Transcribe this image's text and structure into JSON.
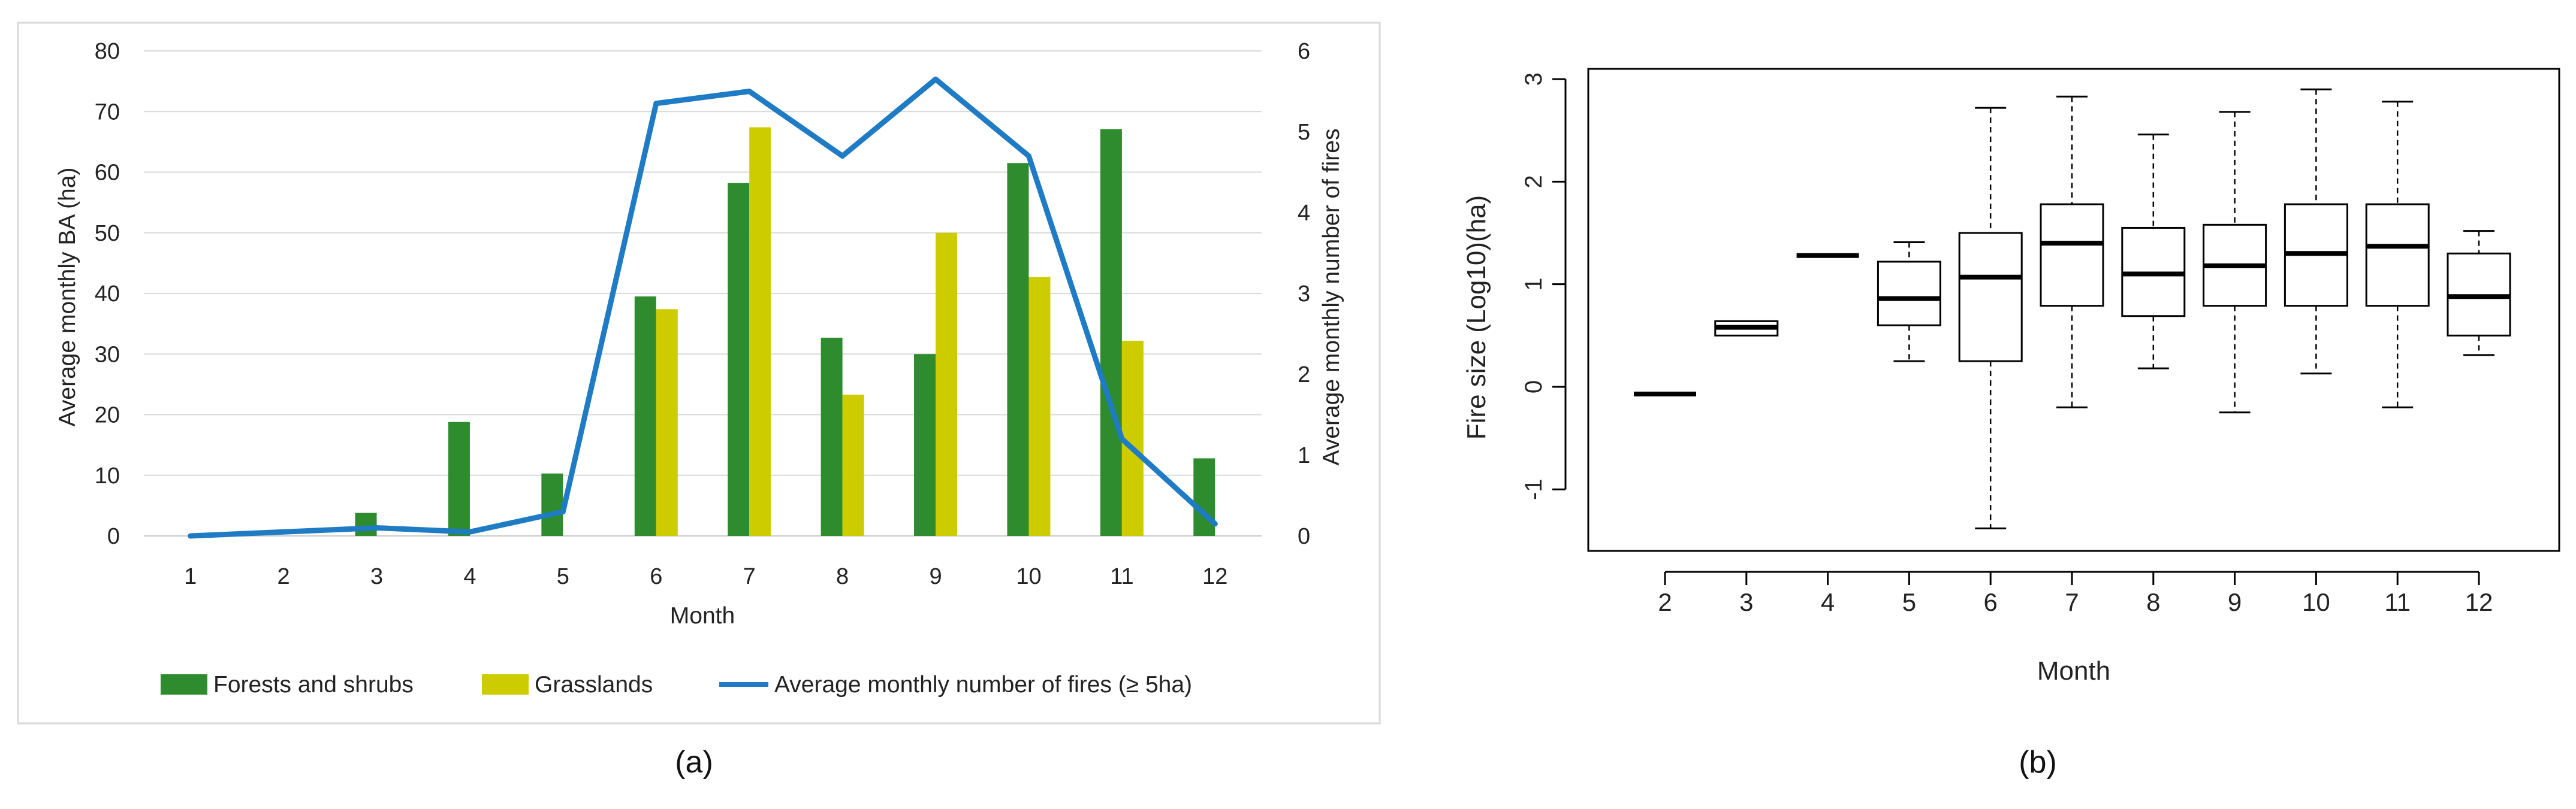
{
  "chart_data": [
    {
      "type": "bar",
      "panel_label": "(a)",
      "xlabel": "Month",
      "ylabel": "Average monthly BA (ha)",
      "y2label": "Average monthly number of fires",
      "ylim": [
        0,
        80
      ],
      "y2lim": [
        0,
        6
      ],
      "yticks": [
        "0",
        "10",
        "20",
        "30",
        "40",
        "50",
        "60",
        "70",
        "80"
      ],
      "y2ticks": [
        "0",
        "1",
        "2",
        "3",
        "4",
        "5",
        "6"
      ],
      "categories": [
        "1",
        "2",
        "3",
        "4",
        "5",
        "6",
        "7",
        "8",
        "9",
        "10",
        "11",
        "12"
      ],
      "grid": true,
      "legend_position": "bottom",
      "series": [
        {
          "name": "Forests and shrubs",
          "kind": "bar",
          "axis": "left",
          "color": "#2e8b2e",
          "values": [
            0,
            0,
            3.8,
            18.8,
            10.3,
            39.5,
            58.2,
            32.7,
            30,
            61.5,
            67.1,
            12.8
          ]
        },
        {
          "name": "Grasslands",
          "kind": "bar",
          "axis": "left",
          "color": "#cccc00",
          "values": [
            0,
            0,
            0,
            0,
            0,
            37.4,
            67.4,
            23.3,
            50,
            42.7,
            32.2,
            0
          ]
        },
        {
          "name": "Average monthly number of fires (≥ 5ha)",
          "kind": "line",
          "axis": "right",
          "color": "#1f7bc4",
          "values": [
            0,
            0.05,
            0.1,
            0.05,
            0.3,
            5.35,
            5.5,
            4.7,
            5.65,
            4.7,
            1.2,
            0.15
          ]
        }
      ]
    },
    {
      "type": "box",
      "panel_label": "(b)",
      "xlabel": "Month",
      "ylabel": "Fire size (Log10)(ha)",
      "ylim": [
        -1.6,
        3.1
      ],
      "yticks": [
        "-1",
        "0",
        "1",
        "2",
        "3"
      ],
      "categories": [
        "2",
        "3",
        "4",
        "5",
        "6",
        "7",
        "8",
        "9",
        "10",
        "11",
        "12"
      ],
      "boxes": [
        {
          "month": "2",
          "min": -0.07,
          "q1": -0.07,
          "median": -0.07,
          "q3": -0.07,
          "max": -0.07
        },
        {
          "month": "3",
          "min": 0.5,
          "q1": 0.5,
          "median": 0.58,
          "q3": 0.64,
          "max": 0.64
        },
        {
          "month": "4",
          "min": 1.28,
          "q1": 1.28,
          "median": 1.28,
          "q3": 1.28,
          "max": 1.28
        },
        {
          "month": "5",
          "min": 0.25,
          "q1": 0.6,
          "median": 0.86,
          "q3": 1.22,
          "max": 1.41
        },
        {
          "month": "6",
          "min": -1.38,
          "q1": 0.25,
          "median": 1.07,
          "q3": 1.5,
          "max": 2.72
        },
        {
          "month": "7",
          "min": -0.2,
          "q1": 0.79,
          "median": 1.4,
          "q3": 1.78,
          "max": 2.83
        },
        {
          "month": "8",
          "min": 0.18,
          "q1": 0.69,
          "median": 1.1,
          "q3": 1.55,
          "max": 2.46
        },
        {
          "month": "9",
          "min": -0.25,
          "q1": 0.79,
          "median": 1.18,
          "q3": 1.58,
          "max": 2.68
        },
        {
          "month": "10",
          "min": 0.13,
          "q1": 0.79,
          "median": 1.3,
          "q3": 1.78,
          "max": 2.9
        },
        {
          "month": "11",
          "min": -0.2,
          "q1": 0.79,
          "median": 1.37,
          "q3": 1.78,
          "max": 2.78
        },
        {
          "month": "12",
          "min": 0.31,
          "q1": 0.5,
          "median": 0.88,
          "q3": 1.3,
          "max": 1.52
        }
      ]
    }
  ]
}
